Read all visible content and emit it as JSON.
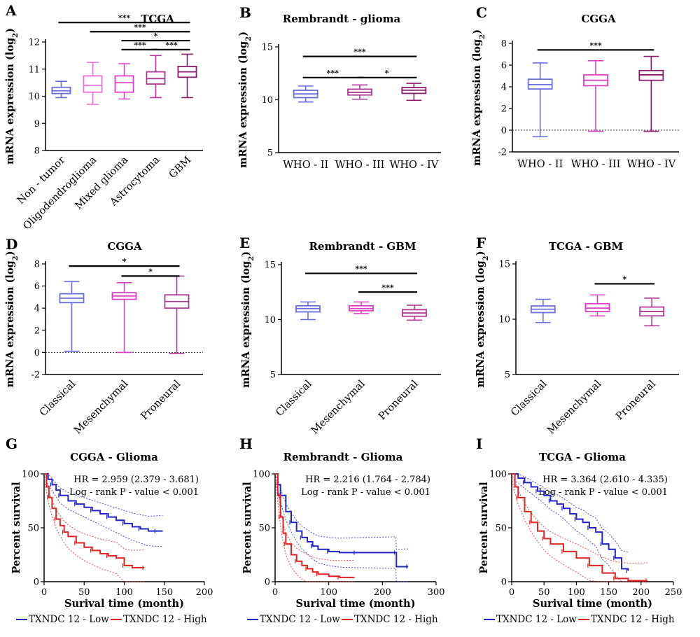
{
  "colors": {
    "blue": "#6a6fe0",
    "pink": "#f06fd2",
    "magenta": "#e040c8",
    "plum": "#b03a92",
    "darkplum": "#8a1d6a",
    "km_blue": "#2424c8",
    "km_red": "#e02424"
  },
  "chart_data": [
    {
      "id": "A",
      "letter": "A",
      "type": "box",
      "title": "TCGA",
      "ylabel": "mRNA expression (log",
      "ylabel_sub": "2",
      "ylabel_end": ")",
      "ylim": [
        8,
        12
      ],
      "yticks": [
        "8",
        "9",
        "10",
        "11",
        "12"
      ],
      "ytick_values": [
        8,
        9,
        10,
        11,
        12
      ],
      "categories": [
        "Non - tumor",
        "Oligodendroglioma",
        "Mixed glioma",
        "Astrocytoma",
        "GBM"
      ],
      "rotated": true,
      "colors": [
        "#6a6fe0",
        "#f06fd2",
        "#e040c8",
        "#b03a92",
        "#8a1d6a"
      ],
      "boxes": [
        {
          "min": 9.95,
          "q1": 10.1,
          "median": 10.2,
          "q3": 10.33,
          "max": 10.55
        },
        {
          "min": 9.7,
          "q1": 10.15,
          "median": 10.4,
          "q3": 10.75,
          "max": 11.25
        },
        {
          "min": 9.9,
          "q1": 10.15,
          "median": 10.5,
          "q3": 10.75,
          "max": 11.2
        },
        {
          "min": 9.95,
          "q1": 10.45,
          "median": 10.65,
          "q3": 10.9,
          "max": 11.5
        },
        {
          "min": 9.95,
          "q1": 10.7,
          "median": 10.9,
          "q3": 11.1,
          "max": 11.55
        }
      ],
      "brackets": [
        {
          "from": 0,
          "to": 4,
          "y": 12.72,
          "label": "***"
        },
        {
          "from": 1,
          "to": 4,
          "y": 12.38,
          "label": "***"
        },
        {
          "from": 2,
          "to": 4,
          "y": 12.05,
          "label": "*"
        },
        {
          "from": 2,
          "to": 3,
          "y": 11.72,
          "label": "***"
        },
        {
          "from": 3,
          "to": 4,
          "y": 11.72,
          "label": "***"
        }
      ]
    },
    {
      "id": "B",
      "letter": "B",
      "type": "box",
      "title": "Rembrandt - glioma",
      "ylabel": "mRNA expression (log",
      "ylabel_sub": "2",
      "ylabel_end": ")",
      "ylim": [
        5,
        15
      ],
      "yticks": [
        "5",
        "10",
        "15"
      ],
      "ytick_values": [
        5,
        10,
        15
      ],
      "categories": [
        "WHO - II",
        "WHO - III",
        "WHO - IV"
      ],
      "rotated": false,
      "colors": [
        "#6a6fe0",
        "#b03a92",
        "#8a1d6a"
      ],
      "boxes": [
        {
          "min": 9.8,
          "q1": 10.2,
          "median": 10.55,
          "q3": 10.9,
          "max": 11.3
        },
        {
          "min": 10.05,
          "q1": 10.45,
          "median": 10.7,
          "q3": 11.0,
          "max": 11.4
        },
        {
          "min": 9.95,
          "q1": 10.6,
          "median": 10.9,
          "q3": 11.15,
          "max": 11.55
        }
      ],
      "brackets": [
        {
          "from": 0,
          "to": 2,
          "y": 14.1,
          "label": "***"
        },
        {
          "from": 0,
          "to": 1,
          "y": 12.1,
          "label": "***"
        },
        {
          "from": 1,
          "to": 2,
          "y": 12.1,
          "label": "*"
        }
      ]
    },
    {
      "id": "C",
      "letter": "C",
      "type": "box",
      "title": "CGGA",
      "ylabel": "mRNA expression (log",
      "ylabel_sub": "2",
      "ylabel_end": ")",
      "ylim": [
        -2,
        8
      ],
      "yticks": [
        "-2",
        "0",
        "2",
        "4",
        "6",
        "8"
      ],
      "ytick_values": [
        -2,
        0,
        2,
        4,
        6,
        8
      ],
      "categories": [
        "WHO - II",
        "WHO - III",
        "WHO - IV"
      ],
      "rotated": false,
      "zero_line": true,
      "colors": [
        "#6a6fe0",
        "#e040c8",
        "#8a1d6a"
      ],
      "boxes": [
        {
          "min": -0.6,
          "q1": 3.8,
          "median": 4.2,
          "q3": 4.7,
          "max": 6.2
        },
        {
          "min": -0.1,
          "q1": 4.1,
          "median": 4.6,
          "q3": 5.1,
          "max": 6.4
        },
        {
          "min": -0.1,
          "q1": 4.6,
          "median": 5.1,
          "q3": 5.5,
          "max": 6.8
        }
      ],
      "brackets": [
        {
          "from": 0,
          "to": 2,
          "y": 7.4,
          "label": "***"
        }
      ]
    },
    {
      "id": "D",
      "letter": "D",
      "type": "box",
      "title": "CGGA",
      "ylabel": "mRNA expression (log",
      "ylabel_sub": "2",
      "ylabel_end": ")",
      "ylim": [
        -2,
        8
      ],
      "yticks": [
        "-2",
        "0",
        "2",
        "4",
        "6",
        "8"
      ],
      "ytick_values": [
        -2,
        0,
        2,
        4,
        6,
        8
      ],
      "categories": [
        "Classical",
        "Mesenchymal",
        "Proneural"
      ],
      "rotated": true,
      "zero_line": true,
      "colors": [
        "#6a6fe0",
        "#e040c8",
        "#b03a92"
      ],
      "boxes": [
        {
          "min": 0.1,
          "q1": 4.5,
          "median": 4.9,
          "q3": 5.3,
          "max": 6.4
        },
        {
          "min": 0.0,
          "q1": 4.8,
          "median": 5.1,
          "q3": 5.4,
          "max": 6.3
        },
        {
          "min": -0.1,
          "q1": 4.0,
          "median": 4.6,
          "q3": 5.2,
          "max": 6.9
        }
      ],
      "brackets": [
        {
          "from": 0,
          "to": 2,
          "y": 7.8,
          "label": "*"
        },
        {
          "from": 1,
          "to": 2,
          "y": 6.9,
          "label": "*"
        }
      ]
    },
    {
      "id": "E",
      "letter": "E",
      "type": "box",
      "title": "Rembrandt - GBM",
      "ylabel": "mRNA expression (log",
      "ylabel_sub": "2",
      "ylabel_end": ")",
      "ylim": [
        5,
        15
      ],
      "yticks": [
        "5",
        "10",
        "15"
      ],
      "ytick_values": [
        5,
        10,
        15
      ],
      "categories": [
        "Classical",
        "Mesenchymal",
        "Proneural"
      ],
      "rotated": true,
      "colors": [
        "#6a6fe0",
        "#e040c8",
        "#b03a92"
      ],
      "boxes": [
        {
          "min": 10.0,
          "q1": 10.7,
          "median": 11.0,
          "q3": 11.25,
          "max": 11.6
        },
        {
          "min": 10.55,
          "q1": 10.8,
          "median": 11.0,
          "q3": 11.25,
          "max": 11.6
        },
        {
          "min": 9.95,
          "q1": 10.3,
          "median": 10.6,
          "q3": 10.9,
          "max": 11.3
        }
      ],
      "brackets": [
        {
          "from": 0,
          "to": 2,
          "y": 14.2,
          "label": "***"
        },
        {
          "from": 1,
          "to": 2,
          "y": 12.5,
          "label": "***"
        }
      ]
    },
    {
      "id": "F",
      "letter": "F",
      "type": "box",
      "title": "TCGA - GBM",
      "ylabel": "mRNA expression (log",
      "ylabel_sub": "2",
      "ylabel_end": ")",
      "ylim": [
        5,
        15
      ],
      "yticks": [
        "5",
        "10",
        "15"
      ],
      "ytick_values": [
        5,
        10,
        15
      ],
      "categories": [
        "Classical",
        "Mesenchymal",
        "Proneural"
      ],
      "rotated": true,
      "colors": [
        "#6a6fe0",
        "#e040c8",
        "#b03a92"
      ],
      "boxes": [
        {
          "min": 9.7,
          "q1": 10.6,
          "median": 10.9,
          "q3": 11.2,
          "max": 11.8
        },
        {
          "min": 10.3,
          "q1": 10.7,
          "median": 11.0,
          "q3": 11.4,
          "max": 12.2
        },
        {
          "min": 9.4,
          "q1": 10.3,
          "median": 10.7,
          "q3": 11.1,
          "max": 11.9
        }
      ],
      "brackets": [
        {
          "from": 1,
          "to": 2,
          "y": 13.2,
          "label": "*"
        }
      ]
    },
    {
      "id": "G",
      "letter": "G",
      "type": "line",
      "title": "CGGA - Glioma",
      "ylabel": "Percent survival",
      "xlabel": "Surival time (month)",
      "xlim": [
        0,
        200
      ],
      "ylim": [
        0,
        100
      ],
      "xticks": [
        "0",
        "50",
        "100",
        "150",
        "200"
      ],
      "xtick_values": [
        0,
        50,
        100,
        150,
        200
      ],
      "yticks": [
        "0",
        "50",
        "100"
      ],
      "ytick_values": [
        0,
        50,
        100
      ],
      "hr_text": "HR = 2.959 (2.379 - 3.681)",
      "p_text": "Log - rank P - value < 0.001",
      "legend": [
        "TXNDC 12 - Low",
        "TXNDC 12 - High"
      ],
      "series": [
        {
          "name": "TXNDC 12 - Low",
          "color": "#2424c8",
          "x": [
            0,
            5,
            10,
            15,
            20,
            30,
            40,
            50,
            60,
            70,
            80,
            90,
            100,
            110,
            120,
            130,
            140,
            148
          ],
          "y": [
            100,
            95,
            90,
            85,
            80,
            75,
            72,
            69,
            66,
            63,
            60,
            57,
            54,
            51,
            49,
            47,
            47,
            47
          ]
        },
        {
          "name": "TXNDC 12 - High",
          "color": "#e02424",
          "x": [
            0,
            3,
            6,
            10,
            15,
            20,
            25,
            30,
            40,
            50,
            60,
            70,
            80,
            90,
            100,
            110,
            125
          ],
          "y": [
            100,
            88,
            78,
            68,
            58,
            52,
            46,
            42,
            36,
            32,
            29,
            26,
            24,
            22,
            15,
            13,
            13
          ]
        }
      ]
    },
    {
      "id": "H",
      "letter": "H",
      "type": "line",
      "title": "Rembrandt - Glioma",
      "ylabel": "Percent survival",
      "xlabel": "Surival time (month)",
      "xlim": [
        0,
        300
      ],
      "ylim": [
        0,
        100
      ],
      "xticks": [
        "0",
        "100",
        "200",
        "300"
      ],
      "xtick_values": [
        0,
        100,
        200,
        300
      ],
      "yticks": [
        "0",
        "50",
        "100"
      ],
      "ytick_values": [
        0,
        50,
        100
      ],
      "hr_text": "HR = 2.216 (1.764 - 2.784)",
      "p_text": "Log - rank P - value < 0.001",
      "legend": [
        "TXNDC 12 - Low",
        "TXNDC 12 - High"
      ],
      "series": [
        {
          "name": "TXNDC 12 - Low",
          "color": "#2424c8",
          "x": [
            0,
            5,
            10,
            20,
            30,
            40,
            50,
            60,
            70,
            80,
            100,
            120,
            150,
            200,
            225,
            226,
            248
          ],
          "y": [
            100,
            90,
            80,
            65,
            55,
            47,
            41,
            37,
            33,
            30,
            28,
            27,
            27,
            27,
            27,
            14,
            14
          ]
        },
        {
          "name": "TXNDC 12 - High",
          "color": "#e02424",
          "x": [
            0,
            5,
            10,
            15,
            20,
            30,
            40,
            50,
            60,
            70,
            80,
            100,
            120,
            148
          ],
          "y": [
            100,
            80,
            60,
            45,
            35,
            25,
            19,
            15,
            12,
            9,
            7,
            5,
            4,
            4
          ]
        }
      ]
    },
    {
      "id": "I",
      "letter": "I",
      "type": "line",
      "title": "TCGA - Glioma",
      "ylabel": "Percent survival",
      "xlabel": "Surival time (month)",
      "xlim": [
        0,
        250
      ],
      "ylim": [
        0,
        100
      ],
      "xticks": [
        "0",
        "50",
        "100",
        "150",
        "200",
        "250"
      ],
      "xtick_values": [
        0,
        50,
        100,
        150,
        200,
        250
      ],
      "yticks": [
        "0",
        "50",
        "100"
      ],
      "ytick_values": [
        0,
        50,
        100
      ],
      "hr_text": "HR = 3.364 (2.610 - 4.335)",
      "p_text": "Log - rank P - value < 0.001",
      "legend": [
        "TXNDC 12 - Low",
        "TXNDC 12 - High"
      ],
      "series": [
        {
          "name": "TXNDC 12 - Low",
          "color": "#2424c8",
          "x": [
            0,
            10,
            20,
            30,
            40,
            50,
            60,
            70,
            80,
            90,
            100,
            110,
            120,
            130,
            140,
            150,
            160,
            170,
            180
          ],
          "y": [
            100,
            96,
            92,
            88,
            84,
            80,
            75,
            72,
            68,
            63,
            58,
            55,
            50,
            46,
            35,
            30,
            22,
            12,
            10
          ]
        },
        {
          "name": "TXNDC 12 - High",
          "color": "#e02424",
          "x": [
            0,
            5,
            10,
            20,
            30,
            40,
            50,
            60,
            80,
            100,
            120,
            140,
            160,
            180,
            210
          ],
          "y": [
            100,
            88,
            78,
            65,
            55,
            47,
            40,
            35,
            28,
            22,
            15,
            8,
            3,
            1,
            1
          ]
        }
      ]
    }
  ]
}
